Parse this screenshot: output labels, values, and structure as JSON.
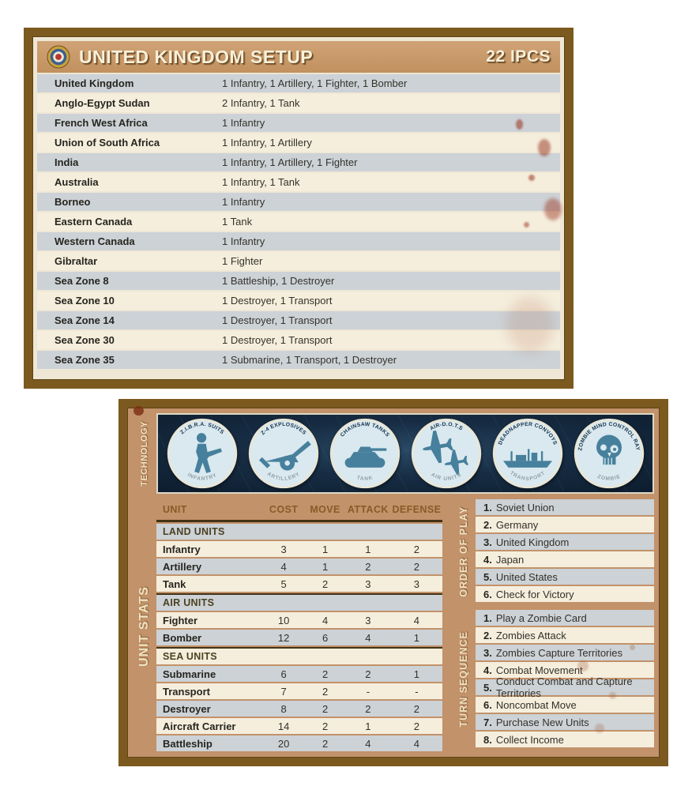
{
  "colors": {
    "card_border": "#7b591f",
    "header_tan": "#c89a6a",
    "row_gray": "#ccd2d6",
    "row_cream": "#f5eedd",
    "tech_navy": "#152b40",
    "tech_disc": "#d8e9ef",
    "tech_silhouette": "#47809c",
    "accent_rust": "#8a5a28",
    "stain_red": "#982f1a"
  },
  "setup_card": {
    "title": "UNITED KINGDOM SETUP",
    "ipcs": "22 IPCS",
    "roundel": "raf-roundel-icon",
    "rows": [
      {
        "territory": "United Kingdom",
        "units": "1 Infantry, 1 Artillery, 1 Fighter, 1 Bomber"
      },
      {
        "territory": "Anglo-Egypt Sudan",
        "units": "2 Infantry, 1 Tank"
      },
      {
        "territory": "French West Africa",
        "units": "1 Infantry"
      },
      {
        "territory": "Union of South Africa",
        "units": "1 Infantry, 1 Artillery"
      },
      {
        "territory": "India",
        "units": "1 Infantry, 1 Artillery, 1 Fighter"
      },
      {
        "territory": "Australia",
        "units": "1 Infantry, 1 Tank"
      },
      {
        "territory": "Borneo",
        "units": "1 Infantry"
      },
      {
        "territory": "Eastern Canada",
        "units": "1 Tank"
      },
      {
        "territory": "Western Canada",
        "units": "1 Infantry"
      },
      {
        "territory": "Gibraltar",
        "units": "1 Fighter"
      },
      {
        "territory": "Sea Zone 8",
        "units": "1 Battleship, 1 Destroyer"
      },
      {
        "territory": "Sea Zone 10",
        "units": "1 Destroyer, 1 Transport"
      },
      {
        "territory": "Sea Zone 14",
        "units": "1 Destroyer, 1 Transport"
      },
      {
        "territory": "Sea Zone 30",
        "units": "1 Destroyer, 1 Transport"
      },
      {
        "territory": "Sea Zone 35",
        "units": "1 Submarine, 1 Transport, 1 Destroyer"
      }
    ]
  },
  "reference_card": {
    "technology": {
      "label": "TECHNOLOGY",
      "items": [
        {
          "name": "Z.I.B.R.A. SUITS",
          "unit": "INFANTRY",
          "icon": "infantry-soldier-icon"
        },
        {
          "name": "Z-4 EXPLOSIVES",
          "unit": "ARTILLERY",
          "icon": "artillery-gun-icon"
        },
        {
          "name": "CHAINSAW TANKS",
          "unit": "TANK",
          "icon": "tank-icon"
        },
        {
          "name": "AIR-D.O.T.S",
          "unit": "AIR UNITS",
          "icon": "aircraft-icon"
        },
        {
          "name": "DEADNAPPER CONVOYS",
          "unit": "TRANSPORT",
          "icon": "cargo-ship-icon"
        },
        {
          "name": "ZOMBIE MIND CONTROL RAY",
          "unit": "ZOMBIE",
          "icon": "zombie-skull-icon"
        }
      ]
    },
    "unit_stats": {
      "label": "UNIT STATS",
      "columns": [
        "UNIT",
        "COST",
        "MOVE",
        "ATTACK",
        "DEFENSE"
      ],
      "sections": [
        {
          "header": "LAND UNITS",
          "rows": [
            {
              "unit": "Infantry",
              "cost": "3",
              "move": "1",
              "attack": "1",
              "defense": "2"
            },
            {
              "unit": "Artillery",
              "cost": "4",
              "move": "1",
              "attack": "2",
              "defense": "2"
            },
            {
              "unit": "Tank",
              "cost": "5",
              "move": "2",
              "attack": "3",
              "defense": "3"
            }
          ]
        },
        {
          "header": "AIR UNITS",
          "rows": [
            {
              "unit": "Fighter",
              "cost": "10",
              "move": "4",
              "attack": "3",
              "defense": "4"
            },
            {
              "unit": "Bomber",
              "cost": "12",
              "move": "6",
              "attack": "4",
              "defense": "1"
            }
          ]
        },
        {
          "header": "SEA UNITS",
          "rows": [
            {
              "unit": "Submarine",
              "cost": "6",
              "move": "2",
              "attack": "2",
              "defense": "1"
            },
            {
              "unit": "Transport",
              "cost": "7",
              "move": "2",
              "attack": "-",
              "defense": "-"
            },
            {
              "unit": "Destroyer",
              "cost": "8",
              "move": "2",
              "attack": "2",
              "defense": "2"
            },
            {
              "unit": "Aircraft Carrier",
              "cost": "14",
              "move": "2",
              "attack": "1",
              "defense": "2"
            },
            {
              "unit": "Battleship",
              "cost": "20",
              "move": "2",
              "attack": "4",
              "defense": "4"
            }
          ]
        }
      ]
    },
    "order_of_play": {
      "label": "ORDER OF PLAY",
      "items": [
        {
          "num": "1.",
          "text": "Soviet Union"
        },
        {
          "num": "2.",
          "text": "Germany"
        },
        {
          "num": "3.",
          "text": "United Kingdom"
        },
        {
          "num": "4.",
          "text": "Japan"
        },
        {
          "num": "5.",
          "text": "United States"
        },
        {
          "num": "6.",
          "text": "Check for Victory"
        }
      ]
    },
    "turn_sequence": {
      "label": "TURN SEQUENCE",
      "items": [
        {
          "num": "1.",
          "text": "Play a Zombie Card"
        },
        {
          "num": "2.",
          "text": "Zombies Attack"
        },
        {
          "num": "3.",
          "text": "Zombies Capture Territories"
        },
        {
          "num": "4.",
          "text": "Combat Movement"
        },
        {
          "num": "5.",
          "text": "Conduct Combat and Capture Territories"
        },
        {
          "num": "6.",
          "text": "Noncombat Move"
        },
        {
          "num": "7.",
          "text": "Purchase New Units"
        },
        {
          "num": "8.",
          "text": "Collect Income"
        }
      ]
    }
  }
}
